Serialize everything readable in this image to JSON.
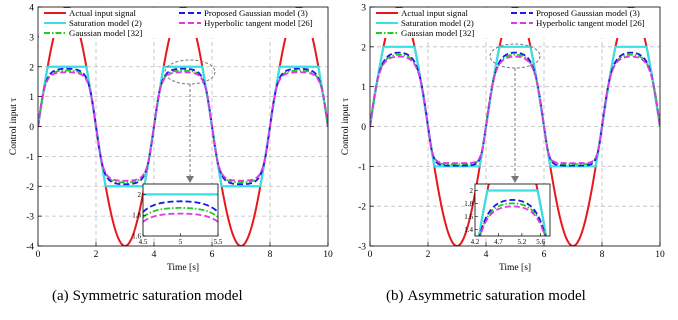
{
  "chart_data": [
    {
      "id": "a",
      "type": "line",
      "caption_label": "(a)",
      "caption": "Symmetric saturation model",
      "xlabel": "Time [s]",
      "ylabel": "Control input τ",
      "xlim": [
        0,
        10
      ],
      "ylim": [
        -4,
        4
      ],
      "xticks": [
        0,
        2,
        4,
        6,
        8,
        10
      ],
      "yticks": [
        -4,
        -3,
        -2,
        -1,
        0,
        1,
        2,
        3,
        4
      ],
      "grid": true,
      "legend_position": "top",
      "signal": {
        "amplitude": 4,
        "period": 4,
        "phase": 0,
        "offset": 0
      },
      "sat_upper": 2,
      "sat_lower": -2,
      "series": [
        {
          "name": "Actual input signal",
          "model": "actual",
          "color": "#e8171c",
          "style": "solid"
        },
        {
          "name": "Saturation model (2)",
          "model": "hard",
          "color": "#38e0e6",
          "style": "solid"
        },
        {
          "name": "Gaussian model [32]",
          "model": "gauss32",
          "color": "#22cc22",
          "style": "dashdot"
        },
        {
          "name": "Proposed Gaussian model (3)",
          "model": "proposed",
          "color": "#1a1aee",
          "style": "dash"
        },
        {
          "name": "Hyperbolic tangent model [26]",
          "model": "tanh",
          "color": "#e238e2",
          "style": "dash"
        }
      ],
      "inset": {
        "xlim": [
          4.5,
          5.5
        ],
        "ylim": [
          1.6,
          2.1
        ],
        "xticks": [
          4.5,
          5,
          5.5
        ],
        "xtick_labels": [
          "4.5",
          "5",
          "5.5"
        ],
        "yticks": [
          1.6,
          1.8,
          2
        ],
        "ytick_labels": [
          "1.6",
          "1.8",
          "2"
        ]
      }
    },
    {
      "id": "b",
      "type": "line",
      "caption_label": "(b)",
      "caption": "Asymmetric saturation model",
      "xlabel": "Time [s]",
      "ylabel": "Control input τ",
      "xlim": [
        0,
        10
      ],
      "ylim": [
        -3,
        3
      ],
      "xticks": [
        0,
        2,
        4,
        6,
        8,
        10
      ],
      "yticks": [
        -3,
        -2,
        -1,
        0,
        1,
        2,
        3
      ],
      "grid": true,
      "legend_position": "top",
      "signal": {
        "amplitude": 3,
        "period": 4,
        "phase": 0,
        "offset": 0
      },
      "sat_upper": 2,
      "sat_lower": -1,
      "series": [
        {
          "name": "Actual input signal",
          "model": "actual",
          "color": "#e8171c",
          "style": "solid"
        },
        {
          "name": "Saturation model (2)",
          "model": "hard",
          "color": "#38e0e6",
          "style": "solid"
        },
        {
          "name": "Gaussian model [32]",
          "model": "gauss32",
          "color": "#22cc22",
          "style": "dashdot"
        },
        {
          "name": "Proposed Gaussian model (3)",
          "model": "proposed",
          "color": "#1a1aee",
          "style": "dash"
        },
        {
          "name": "Hyperbolic tangent model [26]",
          "model": "tanh",
          "color": "#e238e2",
          "style": "dash"
        }
      ],
      "inset": {
        "xlim": [
          4.2,
          5.8
        ],
        "ylim": [
          1.3,
          2.1
        ],
        "xticks": [
          4.2,
          4.7,
          5.2,
          5.6
        ],
        "xtick_labels": [
          "4.2",
          "4.7",
          "5.2",
          "5.6"
        ],
        "yticks": [
          1.4,
          1.6,
          1.8,
          2
        ],
        "ytick_labels": [
          "1.4",
          "1.6",
          "1.8",
          "2"
        ]
      }
    }
  ]
}
